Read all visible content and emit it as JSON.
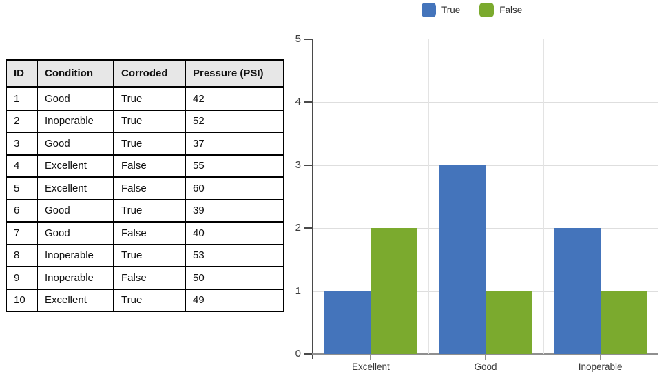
{
  "table": {
    "headers": [
      "ID",
      "Condition",
      "Corroded",
      "Pressure (PSI)"
    ],
    "rows": [
      [
        "1",
        "Good",
        "True",
        "42"
      ],
      [
        "2",
        "Inoperable",
        "True",
        "52"
      ],
      [
        "3",
        "Good",
        "True",
        "37"
      ],
      [
        "4",
        "Excellent",
        "False",
        "55"
      ],
      [
        "5",
        "Excellent",
        "False",
        "60"
      ],
      [
        "6",
        "Good",
        "True",
        "39"
      ],
      [
        "7",
        "Good",
        "False",
        "40"
      ],
      [
        "8",
        "Inoperable",
        "True",
        "53"
      ],
      [
        "9",
        "Inoperable",
        "False",
        "50"
      ],
      [
        "10",
        "Excellent",
        "True",
        "49"
      ]
    ],
    "header_bg": "#E7E7E7",
    "border_color": "#000000"
  },
  "chart_data": {
    "type": "bar",
    "categories": [
      "Excellent",
      "Good",
      "Inoperable"
    ],
    "series": [
      {
        "name": "True",
        "color": "#4474BB",
        "values": [
          1,
          3,
          2
        ]
      },
      {
        "name": "False",
        "color": "#7BAA2E",
        "values": [
          2,
          1,
          1
        ]
      }
    ],
    "title": "",
    "xlabel": "",
    "ylabel": "",
    "ylim": [
      0,
      5
    ],
    "y_ticks": [
      0,
      1,
      2,
      3,
      4,
      5
    ],
    "grid": true,
    "legend_position": "top",
    "gridline_color": "#DEDEDE",
    "axis_line_color": "#4A4A4A",
    "baseline_color": "#8F8F8F"
  }
}
